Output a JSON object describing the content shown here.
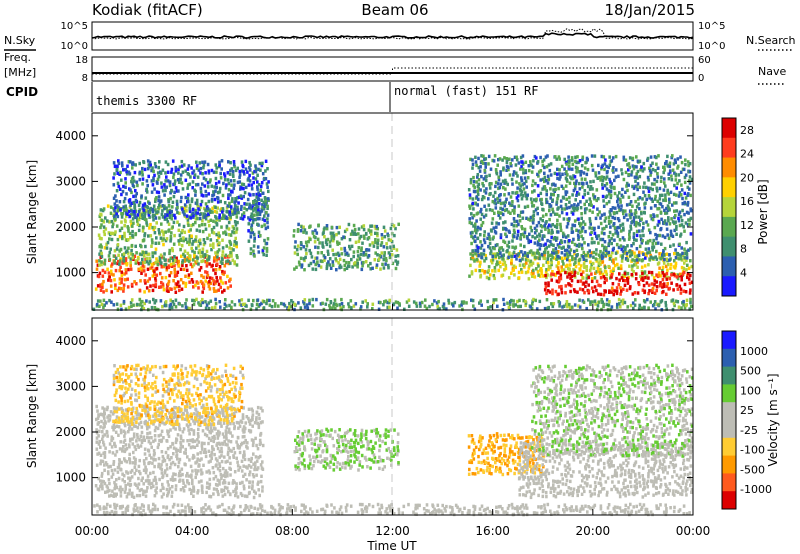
{
  "header": {
    "station": "Kodiak (fitACF)",
    "beam": "Beam 06",
    "date": "18/Jan/2015"
  },
  "panel_labels": {
    "nsky": "N.Sky",
    "nsearch": "N.Search",
    "freq": "Freq.",
    "freq_unit": "[MHz]",
    "nave": "Nave",
    "cpid": "CPID"
  },
  "noise_axis": {
    "left_top": "10^5",
    "left_bottom": "10^0",
    "right_top": "10^5",
    "right_bottom": "10^0"
  },
  "freq_axis": {
    "left_top": "18",
    "left_bottom": "8",
    "right_top": "60",
    "right_bottom": "0"
  },
  "cpid_segments": [
    {
      "label": "themis 3300 RF",
      "start": "00:00"
    },
    {
      "label": "normal (fast) 151 RF",
      "start": "12:00"
    }
  ],
  "colors": {
    "power_scale": [
      "#1a1aff",
      "#2c5fb0",
      "#3f8f6f",
      "#5aa850",
      "#b5d43a",
      "#ffd000",
      "#ff8c00",
      "#ff3c1e",
      "#dc0000"
    ],
    "velocity_scale": [
      "#dc0000",
      "#ff5a1e",
      "#ff9a00",
      "#ffcc33",
      "#bdbdb5",
      "#bdbdb5",
      "#66cc33",
      "#3f8f6f",
      "#2c5fb0",
      "#1a1aff"
    ],
    "ground_scatter": "#bdbdb5"
  },
  "chart_data": [
    {
      "type": "heatmap",
      "name": "power",
      "xlabel": "",
      "ylabel": "Slant Range [km]",
      "xlim": [
        "00:00",
        "24:00"
      ],
      "ylim": [
        180,
        4500
      ],
      "yticks": [
        1000,
        2000,
        3000,
        4000
      ],
      "colorbar": {
        "label": "Power [dB]",
        "ticks": [
          4,
          8,
          12,
          16,
          20,
          24,
          28
        ],
        "range": [
          0,
          30
        ]
      },
      "echo_regions": [
        {
          "t0": 0.1,
          "t1": 5.5,
          "r0": 600,
          "r1": 1400,
          "value": 24
        },
        {
          "t0": 0.2,
          "t1": 5.8,
          "r0": 1200,
          "r1": 2500,
          "value": 12
        },
        {
          "t0": 0.8,
          "t1": 7.0,
          "r0": 2200,
          "r1": 3500,
          "value": 6
        },
        {
          "t0": 6.2,
          "t1": 7.0,
          "r0": 1400,
          "r1": 2700,
          "value": 8
        },
        {
          "t0": 8.0,
          "t1": 12.2,
          "r0": 1100,
          "r1": 2100,
          "value": 10
        },
        {
          "t0": 15.0,
          "t1": 24.0,
          "r0": 900,
          "r1": 1500,
          "value": 16
        },
        {
          "t0": 18.0,
          "t1": 24.0,
          "r0": 550,
          "r1": 1050,
          "value": 28
        },
        {
          "t0": 15.0,
          "t1": 24.0,
          "r0": 1300,
          "r1": 3600,
          "value": 8
        },
        {
          "t0": 0.0,
          "t1": 24.0,
          "r0": 200,
          "r1": 450,
          "value": 10
        }
      ]
    },
    {
      "type": "heatmap",
      "name": "velocity",
      "xlabel": "Time UT",
      "ylabel": "Slant Range [km]",
      "xlim": [
        "00:00",
        "24:00"
      ],
      "ylim": [
        180,
        4500
      ],
      "xticks": [
        "00:00",
        "04:00",
        "08:00",
        "12:00",
        "16:00",
        "20:00",
        "00:00"
      ],
      "yticks": [
        1000,
        2000,
        3000,
        4000
      ],
      "colorbar": {
        "label": "Velocity [m s⁻¹]",
        "ticks": [
          1000,
          500,
          100,
          25,
          -25,
          -100,
          -500,
          -1000
        ]
      },
      "echo_regions": [
        {
          "t0": 0.1,
          "t1": 6.8,
          "r0": 600,
          "r1": 2600,
          "value": 0,
          "ground_scatter": true
        },
        {
          "t0": 0.8,
          "t1": 6.0,
          "r0": 2200,
          "r1": 3500,
          "value": -300
        },
        {
          "t0": 8.0,
          "t1": 12.2,
          "r0": 1200,
          "r1": 2100,
          "value": 200
        },
        {
          "t0": 15.0,
          "t1": 18.0,
          "r0": 1100,
          "r1": 2000,
          "value": -400
        },
        {
          "t0": 17.0,
          "t1": 24.0,
          "r0": 600,
          "r1": 1800,
          "value": 0,
          "ground_scatter": true
        },
        {
          "t0": 17.5,
          "t1": 24.0,
          "r0": 1500,
          "r1": 3500,
          "value": 150
        },
        {
          "t0": 0.0,
          "t1": 24.0,
          "r0": 200,
          "r1": 450,
          "value": -50
        }
      ]
    }
  ]
}
